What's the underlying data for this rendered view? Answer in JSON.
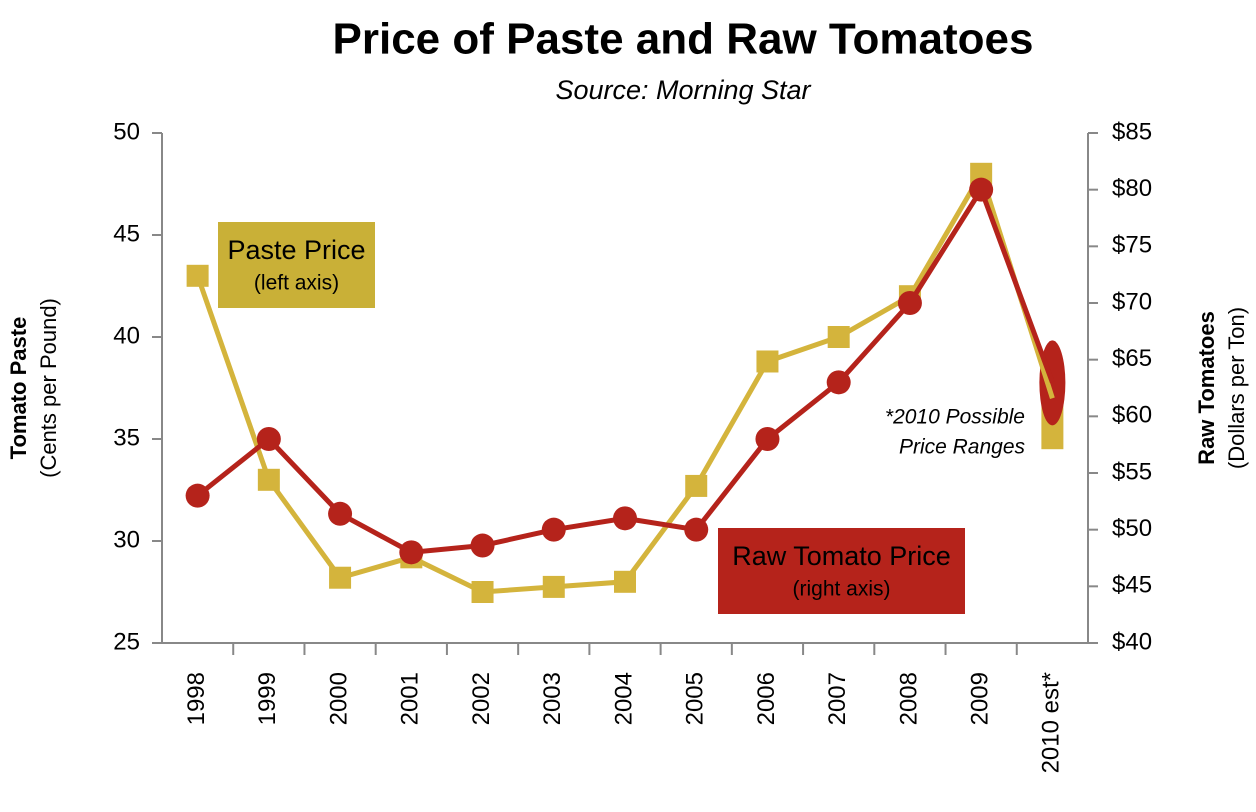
{
  "chart_data": {
    "type": "line",
    "title": "Price of Paste and Raw Tomatoes",
    "subtitle": "Source: Morning Star",
    "y_label": [
      "Tomato Paste",
      "(Cents per Pound)"
    ],
    "y2_label": [
      "Raw Tomatoes",
      "(Dollars per Ton)"
    ],
    "categories": [
      "1998",
      "1999",
      "2000",
      "2001",
      "2002",
      "2003",
      "2004",
      "2005",
      "2006",
      "2007",
      "2008",
      "2009",
      "2010 est*"
    ],
    "ylim": [
      25,
      50
    ],
    "yticks": [
      25,
      30,
      35,
      40,
      45,
      50
    ],
    "y2lim": [
      40,
      85
    ],
    "y2ticks": [
      {
        "value": 40,
        "label": "$40"
      },
      {
        "value": 45,
        "label": "$45"
      },
      {
        "value": 50,
        "label": "$50"
      },
      {
        "value": 55,
        "label": "$55"
      },
      {
        "value": 60,
        "label": "$60"
      },
      {
        "value": 65,
        "label": "$65"
      },
      {
        "value": 70,
        "label": "$70"
      },
      {
        "value": 75,
        "label": "$75"
      },
      {
        "value": 80,
        "label": "$80"
      },
      {
        "value": 85,
        "label": "$85"
      }
    ],
    "series": [
      {
        "name": "Paste Price",
        "note": "(left axis)",
        "color": "#d4b43c",
        "marker": "square",
        "values": [
          43,
          33,
          28.2,
          29.2,
          27.5,
          27.75,
          28,
          32.7,
          38.8,
          40,
          42,
          48,
          37
        ],
        "est_range": [
          34.5,
          38.5
        ]
      },
      {
        "name": "Raw Tomato Price",
        "note": "(right axis)",
        "color": "#b5231b",
        "marker": "circle",
        "axis": "y2",
        "values": [
          53,
          58,
          51.4,
          48,
          48.6,
          50,
          51,
          50,
          58,
          63,
          70,
          80,
          63
        ],
        "est_range": [
          59.2,
          66.7
        ]
      }
    ],
    "annotation": [
      "*2010 Possible",
      "Price Ranges"
    ]
  }
}
